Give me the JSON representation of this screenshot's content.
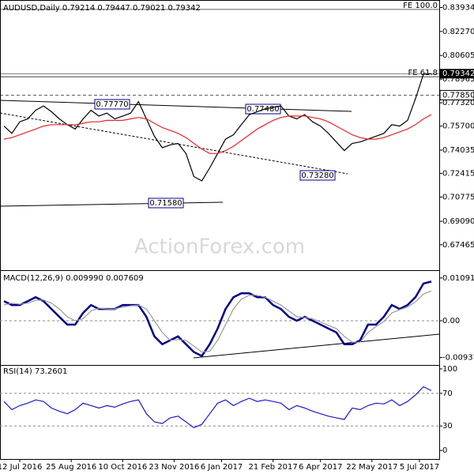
{
  "chart_data": [
    {
      "type": "line",
      "title": "AUDUSD,Daily 0.79214 0.79447 0.79021 0.79342",
      "watermark": "ActionForex.com",
      "x": [
        0,
        1,
        2,
        3,
        4,
        5,
        6,
        7,
        8,
        9,
        10,
        11,
        12,
        13,
        14,
        15,
        16,
        17,
        18,
        19,
        20,
        21,
        22,
        23,
        24,
        25,
        26,
        27,
        28,
        29,
        30,
        31,
        32,
        33,
        34,
        35,
        36,
        37,
        38,
        39,
        40,
        41,
        42,
        43,
        44,
        45,
        46,
        47,
        48,
        49,
        50,
        51,
        52,
        53,
        54
      ],
      "xlim": [
        -0.5,
        55
      ],
      "ylim": [
        0.657,
        0.844
      ],
      "yticks": [
        0.83934,
        {
          "value": 0.8227,
          "label": "0.82270"
        },
        0.80605,
        0.78965,
        {
          "value": 0.7732,
          "label": "0.77320"
        },
        {
          "value": 0.757,
          "label": "0.75700"
        },
        0.74035,
        0.72415,
        0.70775,
        {
          "value": 0.6909,
          "label": "0.69090"
        },
        0.67465
      ],
      "series": [
        {
          "name": "Close",
          "color": "#000000",
          "values": [
            0.757,
            0.752,
            0.76,
            0.762,
            0.768,
            0.771,
            0.767,
            0.762,
            0.758,
            0.755,
            0.762,
            0.768,
            0.764,
            0.766,
            0.762,
            0.764,
            0.766,
            0.774,
            0.762,
            0.75,
            0.742,
            0.744,
            0.745,
            0.738,
            0.722,
            0.719,
            0.728,
            0.738,
            0.748,
            0.751,
            0.758,
            0.765,
            0.767,
            0.769,
            0.77,
            0.771,
            0.764,
            0.762,
            0.765,
            0.76,
            0.757,
            0.752,
            0.746,
            0.74,
            0.745,
            0.746,
            0.748,
            0.75,
            0.752,
            0.758,
            0.757,
            0.761,
            0.776,
            0.793,
            0.79342
          ]
        },
        {
          "name": "MA",
          "color": "#e8262a",
          "values": [
            0.748,
            0.749,
            0.751,
            0.753,
            0.755,
            0.757,
            0.758,
            0.758,
            0.758,
            0.758,
            0.759,
            0.76,
            0.76,
            0.761,
            0.761,
            0.761,
            0.762,
            0.763,
            0.762,
            0.759,
            0.756,
            0.754,
            0.752,
            0.749,
            0.745,
            0.741,
            0.738,
            0.738,
            0.74,
            0.743,
            0.747,
            0.751,
            0.755,
            0.758,
            0.761,
            0.763,
            0.764,
            0.764,
            0.764,
            0.763,
            0.762,
            0.76,
            0.757,
            0.754,
            0.751,
            0.749,
            0.748,
            0.748,
            0.749,
            0.751,
            0.753,
            0.755,
            0.758,
            0.762,
            0.765
          ]
        }
      ],
      "hlines": [
        {
          "value": 0.838,
          "label": "FE 100.0"
        },
        {
          "value": 0.7913,
          "label": "FE 61.8"
        },
        {
          "value": 0.7785,
          "label": "0.77850"
        }
      ],
      "last_price": {
        "value": 0.79342,
        "label": "0.79342"
      },
      "annotations": [
        "0.77770",
        "0.77480",
        "0.73280",
        "0.71580"
      ]
    },
    {
      "type": "line",
      "title": "MACD(12,26,9) 0.009990 0.007609",
      "x": [
        0,
        1,
        2,
        3,
        4,
        5,
        6,
        7,
        8,
        9,
        10,
        11,
        12,
        13,
        14,
        15,
        16,
        17,
        18,
        19,
        20,
        21,
        22,
        23,
        24,
        25,
        26,
        27,
        28,
        29,
        30,
        31,
        32,
        33,
        34,
        35,
        36,
        37,
        38,
        39,
        40,
        41,
        42,
        43,
        44,
        45,
        46,
        47,
        48,
        49,
        50,
        51,
        52,
        53,
        54
      ],
      "xlim": [
        -0.5,
        55
      ],
      "ylim": [
        -0.0113,
        0.0127
      ],
      "yticks": [
        0.010912,
        {
          "value": 0,
          "label": "0.00"
        },
        -0.009376
      ],
      "series": [
        {
          "name": "MACD",
          "color": "#00008b",
          "values": [
            0.005,
            0.004,
            0.004,
            0.005,
            0.006,
            0.005,
            0.003,
            0.001,
            -0.001,
            -0.001,
            0.002,
            0.004,
            0.003,
            0.003,
            0.003,
            0.004,
            0.004,
            0.004,
            0.001,
            -0.004,
            -0.006,
            -0.005,
            -0.004,
            -0.006,
            -0.008,
            -0.009,
            -0.006,
            -0.002,
            0.003,
            0.006,
            0.007,
            0.007,
            0.006,
            0.006,
            0.004,
            0.003,
            0.001,
            0.0,
            0.001,
            0.0,
            -0.001,
            -0.002,
            -0.003,
            -0.006,
            -0.006,
            -0.005,
            -0.001,
            -0.001,
            0.001,
            0.004,
            0.003,
            0.004,
            0.006,
            0.0095,
            0.00999
          ]
        },
        {
          "name": "Signal",
          "color": "#9a9a9a",
          "values": [
            0.004,
            0.0045,
            0.0042,
            0.0045,
            0.0052,
            0.0053,
            0.0045,
            0.003,
            0.001,
            0.0,
            0.0005,
            0.0025,
            0.0032,
            0.003,
            0.003,
            0.0035,
            0.0038,
            0.004,
            0.003,
            0.0,
            -0.003,
            -0.005,
            -0.0048,
            -0.005,
            -0.0065,
            -0.008,
            -0.0078,
            -0.005,
            -0.001,
            0.003,
            0.0055,
            0.0065,
            0.0065,
            0.006,
            0.005,
            0.004,
            0.0025,
            0.001,
            0.0008,
            0.0005,
            -0.0003,
            -0.0012,
            -0.002,
            -0.004,
            -0.0055,
            -0.0055,
            -0.003,
            -0.0015,
            -0.0002,
            0.002,
            0.0028,
            0.0035,
            0.0048,
            0.0068,
            0.007609
          ]
        }
      ],
      "zero_line": true
    },
    {
      "type": "line",
      "title": "RSI(14) 73.2601",
      "x": [
        0,
        1,
        2,
        3,
        4,
        5,
        6,
        7,
        8,
        9,
        10,
        11,
        12,
        13,
        14,
        15,
        16,
        17,
        18,
        19,
        20,
        21,
        22,
        23,
        24,
        25,
        26,
        27,
        28,
        29,
        30,
        31,
        32,
        33,
        34,
        35,
        36,
        37,
        38,
        39,
        40,
        41,
        42,
        43,
        44,
        45,
        46,
        47,
        48,
        49,
        50,
        51,
        52,
        53,
        54
      ],
      "xlim": [
        -0.5,
        55
      ],
      "ylim": [
        -10.5,
        103.8
      ],
      "yticks": [
        100,
        70,
        30,
        0
      ],
      "levels": [
        70,
        30
      ],
      "xticks": [
        {
          "value": 2,
          "label": "12 Jul 2016"
        },
        {
          "value": 8.5,
          "label": "25 Aug 2016"
        },
        {
          "value": 15,
          "label": "10 Oct 2016"
        },
        {
          "value": 21.5,
          "label": "23 Nov 2016"
        },
        {
          "value": 27.5,
          "label": "6 Jan 2017"
        },
        {
          "value": 34,
          "label": "21 Feb 2017"
        },
        {
          "value": 40,
          "label": "6 Apr 2017"
        },
        {
          "value": 46.5,
          "label": "22 May 2017"
        },
        {
          "value": 52.5,
          "label": "5 Jul 2017"
        }
      ],
      "series": [
        {
          "name": "RSI",
          "color": "#1a1acd",
          "values": [
            60,
            50,
            55,
            58,
            62,
            60,
            52,
            48,
            45,
            50,
            58,
            55,
            52,
            55,
            53,
            57,
            60,
            62,
            45,
            35,
            33,
            40,
            42,
            35,
            28,
            32,
            45,
            58,
            62,
            55,
            60,
            64,
            60,
            62,
            60,
            58,
            50,
            55,
            52,
            48,
            45,
            42,
            40,
            38,
            52,
            50,
            55,
            58,
            57,
            62,
            55,
            60,
            68,
            78,
            73.26
          ]
        }
      ]
    }
  ]
}
